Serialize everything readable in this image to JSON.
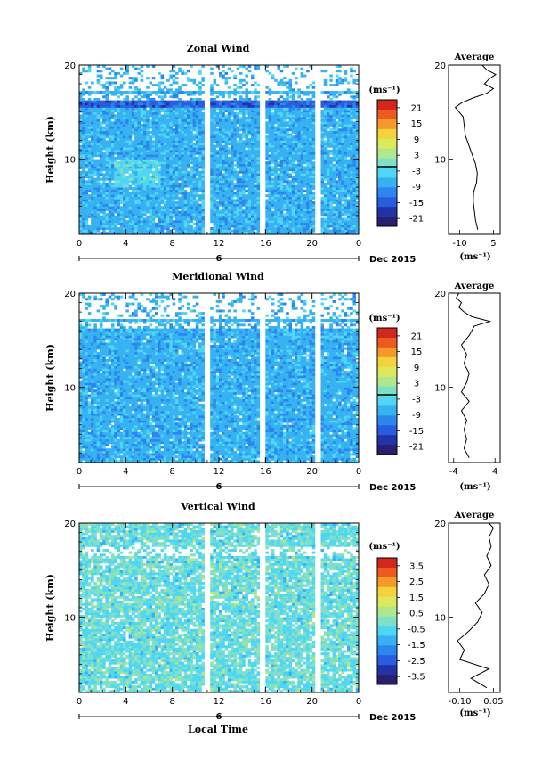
{
  "x_axis_label": "Local Time",
  "date_label": "Dec 2015",
  "date_tick": "6",
  "x_ticks": [
    "0",
    "4",
    "8",
    "12",
    "16",
    "20",
    "0"
  ],
  "y_ticks": [
    "20",
    "10"
  ],
  "y_label": "Height (km)",
  "unit_label": "(ms⁻¹)",
  "colors": {
    "scale": [
      "#2a1f6e",
      "#2233a8",
      "#2a5ce0",
      "#2b86ee",
      "#36b2f2",
      "#4fd6f5",
      "#7fe0c8",
      "#b0e68c",
      "#dde85a",
      "#f4d23a",
      "#f59a2a",
      "#ec5a1f",
      "#d2271d"
    ]
  },
  "chart_data": [
    {
      "type": "heatmap",
      "title": "Zonal Wind",
      "xlabel": "",
      "ylabel": "Height (km)",
      "x_range": [
        0,
        24
      ],
      "y_range": [
        2,
        20
      ],
      "colorbar": {
        "label": "(ms⁻¹)",
        "ticks": [
          "21",
          "15",
          "9",
          "3",
          "-3",
          "-9",
          "-15",
          "-21"
        ],
        "range": [
          -24,
          24
        ]
      },
      "contour_level": 0,
      "profile": {
        "title": "Average",
        "xlabel": "(ms⁻¹)",
        "x_ticks": [
          "-10",
          "5"
        ],
        "x_range": [
          -15,
          8
        ],
        "points": [
          [
            -2,
            2.5
          ],
          [
            -3,
            3.5
          ],
          [
            -3.5,
            4.5
          ],
          [
            -4,
            5.5
          ],
          [
            -3.8,
            6.5
          ],
          [
            -2.5,
            7.5
          ],
          [
            -2.2,
            8.5
          ],
          [
            -3,
            9.5
          ],
          [
            -4.5,
            10.5
          ],
          [
            -6,
            11.5
          ],
          [
            -7.5,
            12.5
          ],
          [
            -8,
            13.5
          ],
          [
            -8.5,
            14.5
          ],
          [
            -12,
            15.5
          ],
          [
            -9,
            16
          ],
          [
            -4,
            16.5
          ],
          [
            2,
            17
          ],
          [
            5,
            17.5
          ],
          [
            1,
            18
          ],
          [
            3,
            18.5
          ],
          [
            6,
            19
          ],
          [
            2,
            19.5
          ],
          [
            0,
            20
          ]
        ]
      }
    },
    {
      "type": "heatmap",
      "title": "Meridional Wind",
      "xlabel": "",
      "ylabel": "Height (km)",
      "x_range": [
        0,
        24
      ],
      "y_range": [
        2,
        20
      ],
      "colorbar": {
        "label": "(ms⁻¹)",
        "ticks": [
          "21",
          "15",
          "9",
          "3",
          "-3",
          "-9",
          "-15",
          "-21"
        ],
        "range": [
          -24,
          24
        ]
      },
      "contour_level": 0,
      "profile": {
        "title": "Average",
        "xlabel": "(ms⁻¹)",
        "x_ticks": [
          "-4",
          "4"
        ],
        "x_range": [
          -5,
          5
        ],
        "points": [
          [
            -1,
            2.5
          ],
          [
            -2,
            3.5
          ],
          [
            -1.5,
            4.5
          ],
          [
            -2,
            5.5
          ],
          [
            -1.5,
            6.5
          ],
          [
            -2.5,
            7.5
          ],
          [
            -1,
            8.5
          ],
          [
            -2.5,
            9.5
          ],
          [
            -1.5,
            10.5
          ],
          [
            -1,
            11.5
          ],
          [
            -2,
            12.5
          ],
          [
            -1.5,
            13.5
          ],
          [
            -2.5,
            14.5
          ],
          [
            -1,
            15.5
          ],
          [
            0,
            16.5
          ],
          [
            3,
            17
          ],
          [
            -0.5,
            17.5
          ],
          [
            -2,
            18
          ],
          [
            -3,
            18.5
          ],
          [
            -2.5,
            19
          ],
          [
            -3.5,
            19.5
          ],
          [
            -3,
            20
          ]
        ]
      }
    },
    {
      "type": "heatmap",
      "title": "Vertical Wind",
      "xlabel": "Local Time",
      "ylabel": "Height (km)",
      "x_range": [
        0,
        24
      ],
      "y_range": [
        2,
        20
      ],
      "colorbar": {
        "label": "(ms⁻¹)",
        "ticks": [
          "3.5",
          "2.5",
          "1.5",
          "0.5",
          "-0.5",
          "-1.5",
          "-2.5",
          "-3.5"
        ],
        "range": [
          -4,
          4
        ]
      },
      "contour_level": null,
      "profile": {
        "title": "Average",
        "xlabel": "(ms⁻¹)",
        "x_ticks": [
          "-0.10",
          "0.05"
        ],
        "x_range": [
          -0.15,
          0.08
        ],
        "points": [
          [
            0.02,
            2.5
          ],
          [
            -0.05,
            3.5
          ],
          [
            0.03,
            4.5
          ],
          [
            -0.1,
            5.5
          ],
          [
            -0.08,
            6.5
          ],
          [
            -0.11,
            7.5
          ],
          [
            -0.06,
            8.5
          ],
          [
            -0.02,
            9.5
          ],
          [
            0,
            10.5
          ],
          [
            -0.03,
            11.5
          ],
          [
            0.01,
            12.5
          ],
          [
            0.03,
            13.5
          ],
          [
            0.01,
            14.5
          ],
          [
            0.04,
            15.5
          ],
          [
            0.02,
            16.5
          ],
          [
            0.04,
            17.5
          ],
          [
            0.03,
            18.5
          ],
          [
            0.05,
            19.5
          ],
          [
            0.03,
            20
          ]
        ]
      }
    }
  ]
}
